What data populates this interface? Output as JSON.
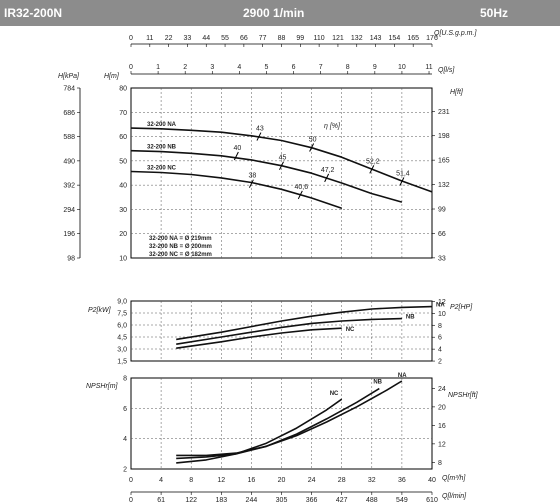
{
  "header": {
    "model": "IR32-200N",
    "speed": "2900 1/min",
    "frequency": "50Hz"
  },
  "colors": {
    "header_bg": "#8c8c8c",
    "curve": "#111111",
    "grid": "#555555"
  },
  "chart_data": {
    "type": "line",
    "top_axes": {
      "q_usgpm_label": "Q[U.S.g.p.m.]",
      "q_usgpm_ticks": [
        "0",
        "11",
        "22",
        "33",
        "44",
        "55",
        "66",
        "77",
        "88",
        "99",
        "110",
        "121",
        "132",
        "143",
        "154",
        "165",
        "176"
      ],
      "q_ls_label": "Q[l/s]",
      "q_ls_ticks": [
        "0",
        "1",
        "2",
        "3",
        "4",
        "5",
        "6",
        "7",
        "8",
        "9",
        "10",
        "11"
      ]
    },
    "bottom_axes": {
      "q_m3h_label": "Q[m³/h]",
      "q_m3h_ticks": [
        "0",
        "4",
        "8",
        "12",
        "16",
        "20",
        "24",
        "28",
        "32",
        "36",
        "40"
      ],
      "q_lmin_label": "Q[l/min]",
      "q_lmin_ticks": [
        "0",
        "61",
        "122",
        "183",
        "244",
        "305",
        "366",
        "427",
        "488",
        "549",
        "610"
      ]
    },
    "head": {
      "ylabel_kpa": "H[kPa]",
      "ylabel_m": "H[m]",
      "ylabel_ft": "H[ft]",
      "ylim": [
        10,
        80
      ],
      "ticks_m": [
        "10",
        "20",
        "30",
        "40",
        "50",
        "60",
        "70",
        "80"
      ],
      "ticks_kpa": [
        "98",
        "196",
        "294",
        "392",
        "490",
        "588",
        "686",
        "784"
      ],
      "ticks_ft": [
        "33",
        "66",
        "99",
        "132",
        "165",
        "198",
        "231"
      ],
      "eta_label": "η [%]",
      "series": [
        {
          "name": "32-200 NA",
          "x": [
            0,
            4,
            8,
            12,
            16,
            20,
            24,
            28,
            32,
            36,
            40
          ],
          "y": [
            63.5,
            63.2,
            62.6,
            61.8,
            60.3,
            58.4,
            55.4,
            51.5,
            46.6,
            41.7,
            37.2
          ]
        },
        {
          "name": "32-200 NB",
          "x": [
            0,
            4,
            8,
            12,
            16,
            20,
            24,
            28,
            32,
            36
          ],
          "y": [
            54.2,
            53.8,
            53.1,
            52.1,
            50.4,
            48,
            44.9,
            40.9,
            36.5,
            33
          ]
        },
        {
          "name": "32-200 NC",
          "x": [
            0,
            4,
            8,
            12,
            16,
            20,
            24,
            28
          ],
          "y": [
            45.6,
            45.2,
            44.4,
            43,
            41.1,
            38.3,
            34.7,
            30.5
          ]
        }
      ],
      "efficiency_marks": [
        {
          "text": "43",
          "x": 17,
          "y": 60
        },
        {
          "text": "50",
          "x": 24,
          "y": 55.5
        },
        {
          "text": "52,2",
          "x": 32,
          "y": 46.5
        },
        {
          "text": "51,4",
          "x": 36,
          "y": 41.5
        },
        {
          "text": "40",
          "x": 14,
          "y": 52
        },
        {
          "text": "45",
          "x": 20,
          "y": 48
        },
        {
          "text": "47,2",
          "x": 26,
          "y": 43
        },
        {
          "text": "38",
          "x": 16,
          "y": 40.6
        },
        {
          "text": "40,6",
          "x": 22.5,
          "y": 36
        }
      ],
      "legend": [
        "32-200 NA = Ø 219mm",
        "32-200 NB = Ø 200mm",
        "32-200 NC = Ø 182mm"
      ]
    },
    "power": {
      "ylabel_kw": "P2[kW]",
      "ylabel_hp": "P2[HP]",
      "ylim": [
        1.5,
        9
      ],
      "ticks_kw": [
        "1,5",
        "3,0",
        "4,5",
        "6,0",
        "7,5",
        "9,0"
      ],
      "ticks_hp": [
        "2",
        "4",
        "6",
        "8",
        "10",
        "12"
      ],
      "series": [
        {
          "name": "NA",
          "x": [
            6,
            12,
            16,
            20,
            24,
            28,
            32,
            36,
            40
          ],
          "y": [
            4.2,
            5.1,
            5.8,
            6.5,
            7.1,
            7.6,
            8,
            8.2,
            8.3
          ]
        },
        {
          "name": "NB",
          "x": [
            6,
            12,
            16,
            20,
            24,
            28,
            32,
            36
          ],
          "y": [
            3.6,
            4.5,
            5.1,
            5.7,
            6.2,
            6.5,
            6.7,
            6.8
          ]
        },
        {
          "name": "NC",
          "x": [
            6,
            12,
            16,
            20,
            24,
            28
          ],
          "y": [
            3.1,
            3.9,
            4.5,
            5,
            5.4,
            5.6
          ]
        }
      ]
    },
    "npsh": {
      "ylabel_m": "NPSHr[m]",
      "ylabel_ft": "NPSHr[ft]",
      "ylim": [
        2,
        8
      ],
      "ticks_m": [
        "2",
        "4",
        "6",
        "8"
      ],
      "ticks_ft": [
        "8",
        "12",
        "16",
        "20",
        "24"
      ],
      "series": [
        {
          "name": "NA",
          "x": [
            6,
            10,
            14,
            18,
            22,
            26,
            30,
            34,
            36
          ],
          "y": [
            2.9,
            2.9,
            3.05,
            3.5,
            4.2,
            5.1,
            6.1,
            7.2,
            7.8
          ]
        },
        {
          "name": "NB",
          "x": [
            6,
            10,
            14,
            18,
            22,
            26,
            30,
            33
          ],
          "y": [
            2.7,
            2.8,
            3.0,
            3.5,
            4.3,
            5.3,
            6.4,
            7.3
          ]
        },
        {
          "name": "NC",
          "x": [
            6,
            10,
            14,
            18,
            22,
            26,
            28
          ],
          "y": [
            2.4,
            2.6,
            3.0,
            3.7,
            4.7,
            5.9,
            6.6
          ]
        }
      ]
    }
  }
}
